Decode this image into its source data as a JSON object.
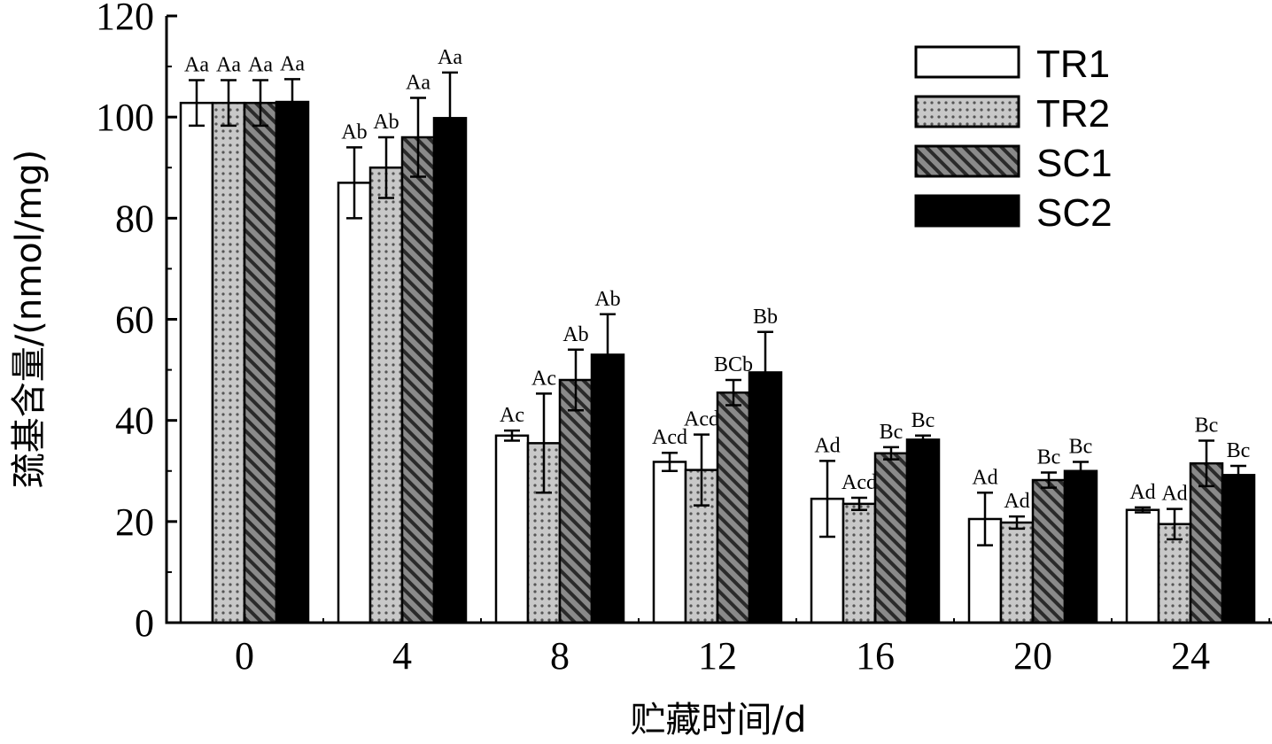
{
  "colors": {
    "TR1": "#ffffff",
    "TR2": "#c8c8c8",
    "SC1": "#8a8a8a",
    "SC2": "#000000"
  },
  "chart_data": {
    "type": "bar",
    "title": "",
    "xlabel": "贮藏时间/d",
    "ylabel": "巯基含量/(nmol/mg)",
    "ylim": [
      0,
      120
    ],
    "yticks": [
      "0",
      "20",
      "40",
      "60",
      "80",
      "100",
      "120"
    ],
    "categories": [
      "0",
      "4",
      "8",
      "12",
      "16",
      "20",
      "24"
    ],
    "legend_position": "top-right",
    "series": [
      {
        "name": "TR1",
        "pattern": "white",
        "values": [
          102.8,
          87.0,
          37.0,
          31.8,
          24.5,
          20.5,
          22.3
        ],
        "errors": [
          4.5,
          7.0,
          1.0,
          1.8,
          7.5,
          5.2,
          0.5
        ],
        "labels": [
          "Aa",
          "Ab",
          "Ac",
          "Acd",
          "Ad",
          "Ad",
          "Ad"
        ]
      },
      {
        "name": "TR2",
        "pattern": "dots",
        "values": [
          102.8,
          90.0,
          35.5,
          30.2,
          23.5,
          19.8,
          19.5
        ],
        "errors": [
          4.5,
          6.0,
          9.8,
          7.0,
          1.2,
          1.2,
          3.0
        ],
        "labels": [
          "Aa",
          "Ab",
          "Ac",
          "Acd",
          "Acd",
          "Ad",
          "Ad"
        ]
      },
      {
        "name": "SC1",
        "pattern": "hatch",
        "values": [
          102.8,
          96.0,
          48.0,
          45.5,
          33.5,
          28.2,
          31.5
        ],
        "errors": [
          4.5,
          7.8,
          6.0,
          2.5,
          1.2,
          1.5,
          4.5
        ],
        "labels": [
          "Aa",
          "Aa",
          "Ab",
          "BCb",
          "Bc",
          "Bc",
          "Bc"
        ]
      },
      {
        "name": "SC2",
        "pattern": "solid",
        "values": [
          103.0,
          99.8,
          53.0,
          49.5,
          36.2,
          30.0,
          29.2
        ],
        "errors": [
          4.5,
          9.0,
          8.0,
          8.0,
          0.8,
          1.8,
          1.8
        ],
        "labels": [
          "Aa",
          "Aa",
          "Ab",
          "Bb",
          "Bc",
          "Bc",
          "Bc"
        ]
      }
    ]
  }
}
